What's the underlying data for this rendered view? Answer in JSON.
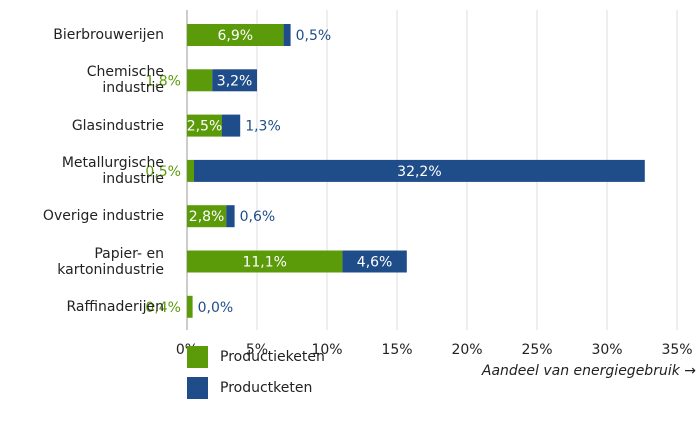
{
  "chart_data": {
    "type": "stacked-horizontal-bar",
    "categories": [
      "Bierbrouwerijen",
      "Chemische\nindustrie",
      "Glasindustrie",
      "Metallurgische\nindustrie",
      "Overige industrie",
      "Papier- en\nkartonindustrie",
      "Raffinaderijen"
    ],
    "series": [
      {
        "name": "Productieketen",
        "color": "#5b9b0a",
        "values": [
          6.9,
          1.8,
          2.5,
          0.5,
          2.8,
          11.1,
          0.4
        ],
        "value_labels": [
          "6,9%",
          "1,8%",
          "2,5%",
          "0,5%",
          "2,8%",
          "11,1%",
          "0,4%"
        ]
      },
      {
        "name": "Productketen",
        "color": "#1f4d89",
        "values": [
          0.5,
          3.2,
          1.3,
          32.2,
          0.6,
          4.6,
          0.0
        ],
        "value_labels": [
          "0,5%",
          "3,2%",
          "1,3%",
          "32,2%",
          "0,6%",
          "4,6%",
          "0,0%"
        ]
      }
    ],
    "xlabel": "Aandeel van energiegebruik →",
    "xlim": [
      0,
      35
    ],
    "xticks": [
      {
        "value": 0,
        "label": "0%"
      },
      {
        "value": 5,
        "label": "5%"
      },
      {
        "value": 10,
        "label": "10%"
      },
      {
        "value": 15,
        "label": "15%"
      },
      {
        "value": 20,
        "label": "20%"
      },
      {
        "value": 25,
        "label": "25%"
      },
      {
        "value": 30,
        "label": "30%"
      },
      {
        "value": 35,
        "label": "35%"
      }
    ],
    "grid": true,
    "legend": "bottom-left"
  }
}
